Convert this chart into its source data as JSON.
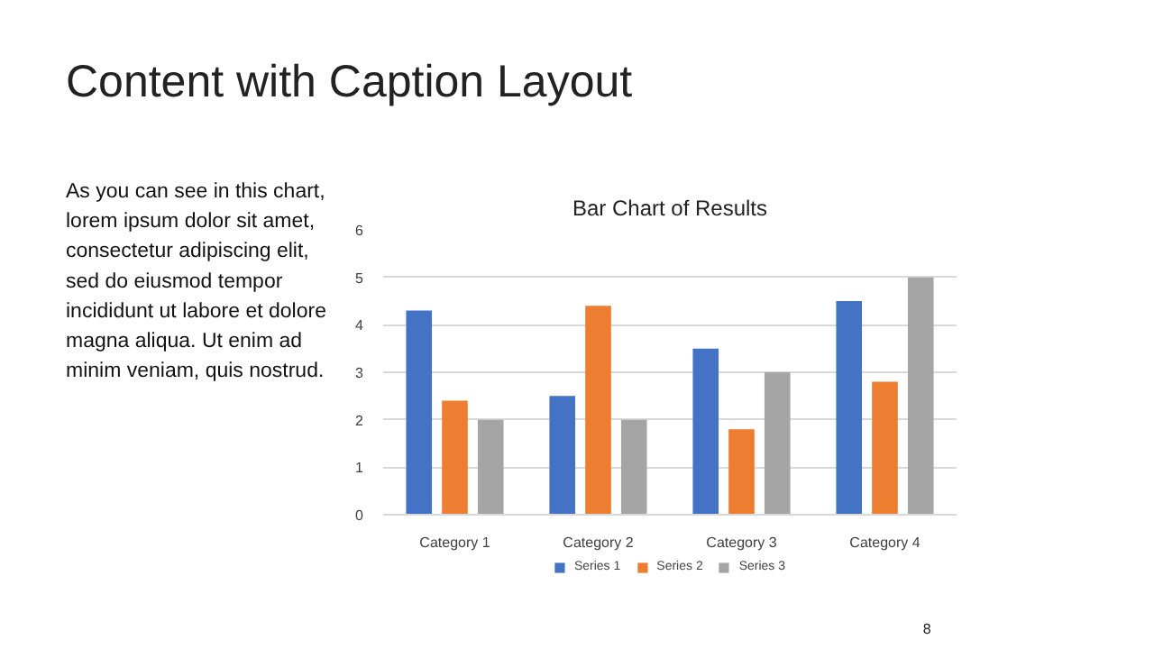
{
  "chart_data": {
    "type": "bar",
    "title": "Bar Chart of Results",
    "categories": [
      "Category 1",
      "Category 2",
      "Category 3",
      "Category 4"
    ],
    "series": [
      {
        "name": "Series 1",
        "color": "#4472c4",
        "values": [
          4.3,
          2.5,
          3.5,
          4.5
        ]
      },
      {
        "name": "Series 2",
        "color": "#ed7d31",
        "values": [
          2.4,
          4.4,
          1.8,
          2.8
        ]
      },
      {
        "name": "Series 3",
        "color": "#a5a5a5",
        "values": [
          2,
          2,
          3,
          5
        ]
      }
    ],
    "ylim": [
      0,
      6
    ],
    "yticks": [
      0,
      1,
      2,
      3,
      4,
      5,
      6
    ],
    "grid": "y",
    "legend": "bottom",
    "annotations": [
      "Content with Caption Layout",
      "As you can see in this chart,",
      "lorem ipsum dolor sit amet,",
      "consectetur adipiscing elit,",
      "sed do eiusmod tempor",
      "incididunt ut labore et dolore",
      "magna aliqua. Ut enim ad",
      "minim veniam, quis nostrud.",
      "8"
    ]
  }
}
